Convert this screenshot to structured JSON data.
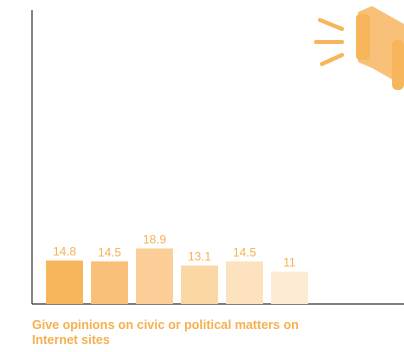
{
  "caption": "Give opinions on civic or political matters on Internet sites",
  "chart_data": {
    "type": "bar",
    "categories": [
      "",
      "",
      "",
      "",
      "",
      ""
    ],
    "values": [
      14.8,
      14.5,
      18.9,
      13.1,
      14.5,
      11
    ],
    "value_labels": [
      "14.8",
      "14.5",
      "18.9",
      "13.1",
      "14.5",
      "11"
    ],
    "bar_colors": [
      "#f7b55c",
      "#f9c07a",
      "#fbcf97",
      "#fcd7a6",
      "#fde2c0",
      "#fdebd4"
    ],
    "label_color": "#f5b14f",
    "ylim": [
      0,
      100
    ],
    "grid": false,
    "legend": "none"
  },
  "decorations": {
    "megaphone_color": "#f9c07a",
    "megaphone_accent": "#f7b55c"
  }
}
